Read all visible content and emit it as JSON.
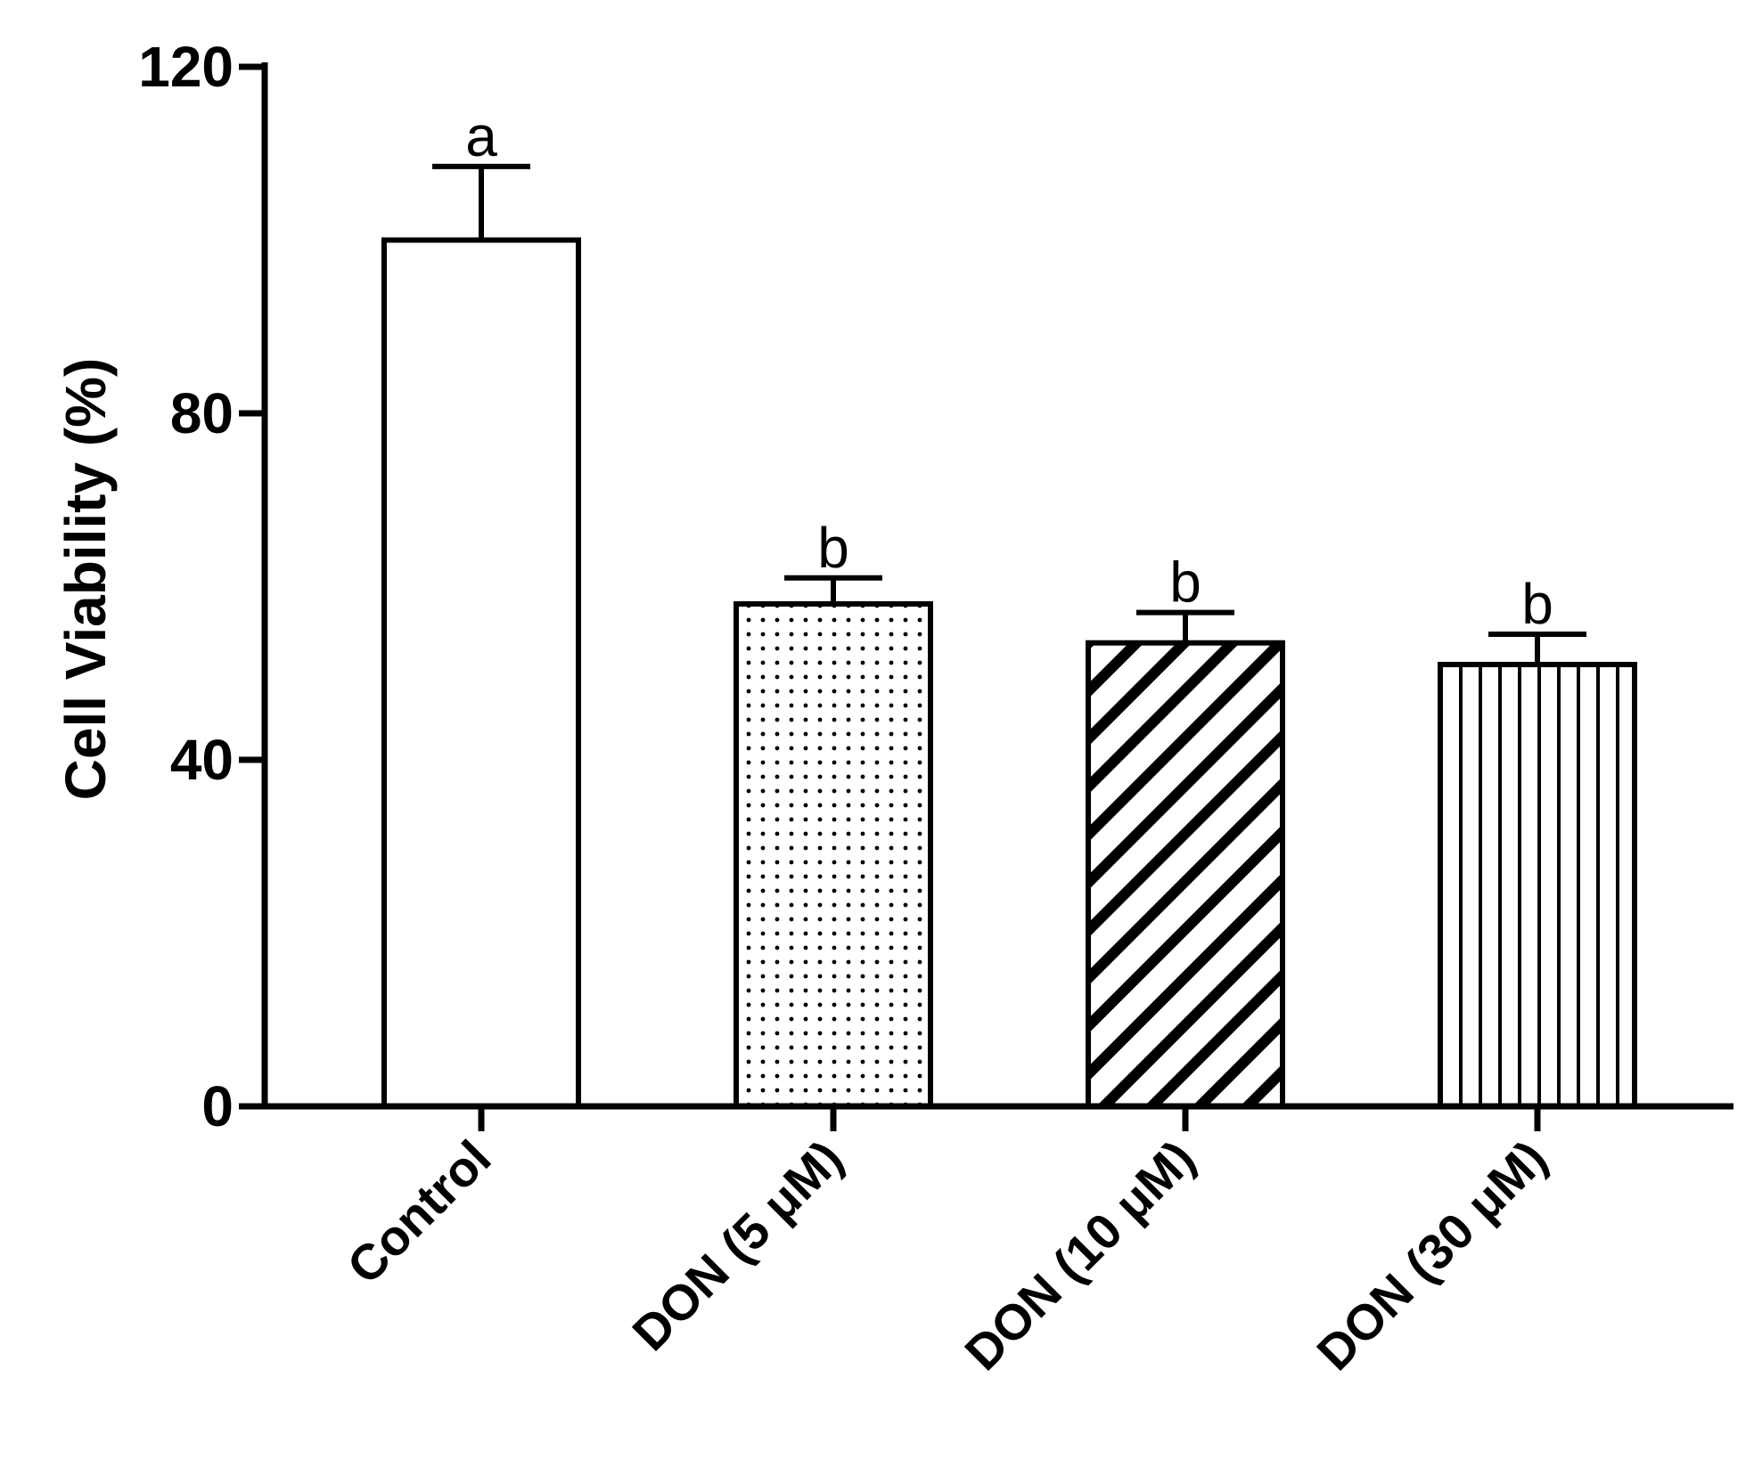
{
  "chart_data": {
    "type": "bar",
    "title": "",
    "xlabel": "",
    "ylabel": "Cell Viability (%)",
    "ylim": [
      0,
      120
    ],
    "yticks": [
      0,
      40,
      80,
      120
    ],
    "grid": false,
    "legend": "none",
    "categories": [
      "Control",
      "DON (5 μM)",
      "DON (10 μM)",
      "DON (30 μM)"
    ],
    "values": [
      100,
      58,
      53.5,
      51
    ],
    "error": [
      8.5,
      3,
      3.5,
      3.5
    ],
    "significance_letters": [
      "a",
      "b",
      "b",
      "b"
    ],
    "patterns": [
      "none",
      "dots",
      "diagonal",
      "vertical"
    ],
    "colors": {
      "bar_fill": "#ffffff",
      "stroke": "#000000"
    }
  }
}
